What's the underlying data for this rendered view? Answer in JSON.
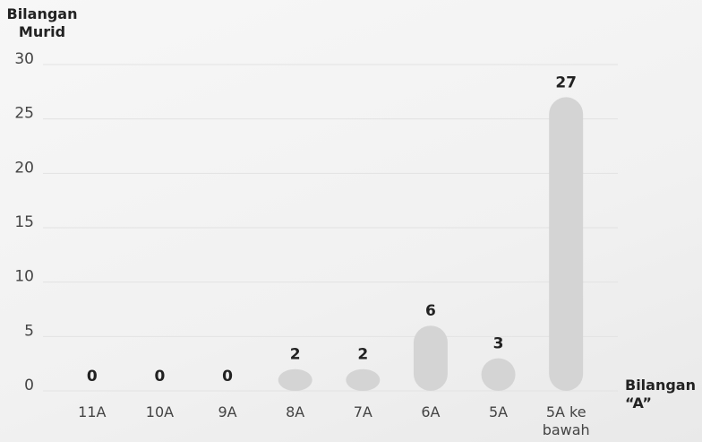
{
  "chart_data": {
    "type": "bar",
    "ylabel": "Bilangan Murid",
    "xlabel": "Bilangan “A”",
    "categories": [
      "11A",
      "10A",
      "9A",
      "8A",
      "7A",
      "6A",
      "5A",
      "5A ke bawah"
    ],
    "values": [
      0,
      0,
      0,
      2,
      2,
      6,
      3,
      27
    ],
    "color": "#d4d4d4",
    "ylim": [
      0,
      30
    ],
    "yticks": [
      0,
      5,
      10,
      15,
      20,
      25,
      30
    ],
    "grid": true
  }
}
